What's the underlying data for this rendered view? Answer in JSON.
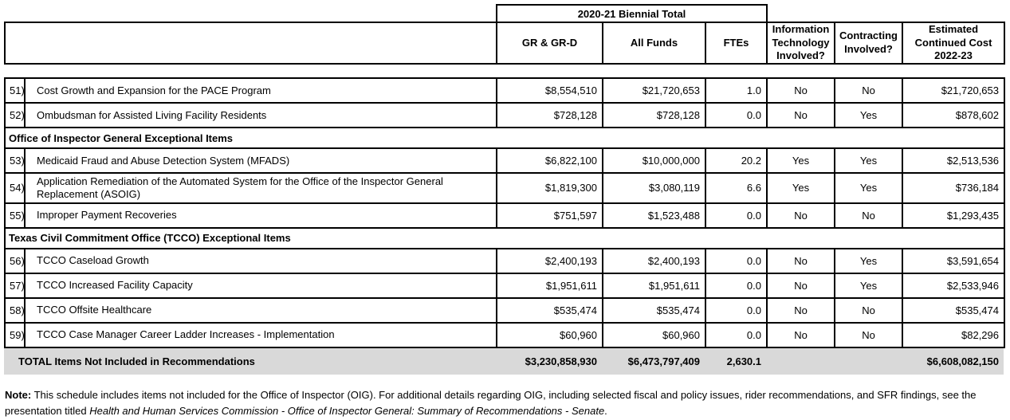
{
  "document": {
    "header": {
      "biennial_title": "2020-21 Biennial Total",
      "columns": {
        "gr": "GR & GR-D",
        "all_funds": "All Funds",
        "ftes": "FTEs",
        "it": "Information Technology Involved?",
        "contracting": "Contracting Involved?",
        "est": "Estimated Continued Cost 2022-23"
      }
    },
    "table": {
      "rows": [
        {
          "type": "item",
          "num": "51)",
          "desc": "Cost Growth and Expansion for the PACE Program",
          "gr": "$8,554,510",
          "all_funds": "$21,720,653",
          "ftes": "1.0",
          "it": "No",
          "contracting": "No",
          "est": "$21,720,653"
        },
        {
          "type": "item",
          "num": "52)",
          "desc": "Ombudsman for Assisted Living Facility Residents",
          "gr": "$728,128",
          "all_funds": "$728,128",
          "ftes": "0.0",
          "it": "No",
          "contracting": "Yes",
          "est": "$878,602"
        },
        {
          "type": "section",
          "label": "Office of Inspector General Exceptional Items"
        },
        {
          "type": "item",
          "num": "53)",
          "desc": "Medicaid Fraud and Abuse Detection System (MFADS)",
          "gr": "$6,822,100",
          "all_funds": "$10,000,000",
          "ftes": "20.2",
          "it": "Yes",
          "contracting": "Yes",
          "est": "$2,513,536"
        },
        {
          "type": "item",
          "num": "54)",
          "desc": "Application Remediation of the Automated System for the Office of the Inspector General Replacement (ASOIG)",
          "gr": "$1,819,300",
          "all_funds": "$3,080,119",
          "ftes": "6.6",
          "it": "Yes",
          "contracting": "Yes",
          "est": "$736,184"
        },
        {
          "type": "item",
          "num": "55)",
          "desc": "Improper Payment Recoveries",
          "gr": "$751,597",
          "all_funds": "$1,523,488",
          "ftes": "0.0",
          "it": "No",
          "contracting": "No",
          "est": "$1,293,435"
        },
        {
          "type": "section",
          "label": "Texas Civil Commitment Office (TCCO) Exceptional Items"
        },
        {
          "type": "item",
          "num": "56)",
          "desc": "TCCO Caseload Growth",
          "gr": "$2,400,193",
          "all_funds": "$2,400,193",
          "ftes": "0.0",
          "it": "No",
          "contracting": "Yes",
          "est": "$3,591,654"
        },
        {
          "type": "item",
          "num": "57)",
          "desc": "TCCO Increased Facility Capacity",
          "gr": "$1,951,611",
          "all_funds": "$1,951,611",
          "ftes": "0.0",
          "it": "No",
          "contracting": "Yes",
          "est": "$2,533,946"
        },
        {
          "type": "item",
          "num": "58)",
          "desc": "TCCO Offsite Healthcare",
          "gr": "$535,474",
          "all_funds": "$535,474",
          "ftes": "0.0",
          "it": "No",
          "contracting": "No",
          "est": "$535,474"
        },
        {
          "type": "item",
          "num": "59)",
          "desc": "TCCO Case Manager Career Ladder Increases - Implementation",
          "gr": "$60,960",
          "all_funds": "$60,960",
          "ftes": "0.0",
          "it": "No",
          "contracting": "No",
          "est": "$82,296"
        }
      ]
    },
    "total": {
      "label": "TOTAL Items Not Included in Recommendations",
      "gr": "$3,230,858,930",
      "all_funds": "$6,473,797,409",
      "ftes": "2,630.1",
      "it": "",
      "contracting": "",
      "est": "$6,608,082,150"
    },
    "note": {
      "label": "Note:",
      "body": " This schedule includes items not included for the Office of Inspector (OIG). For additional details regarding OIG, including selected fiscal and policy issues, rider recommendations, and SFR findings, see the presentation titled ",
      "italic": "Health and Human Services Commission - Office of Inspector General: Summary of Recommendations - Senate",
      "suffix": "."
    },
    "colors": {
      "border": "#000000",
      "total_row_bg": "#d9d9d9",
      "text": "#000000"
    }
  }
}
